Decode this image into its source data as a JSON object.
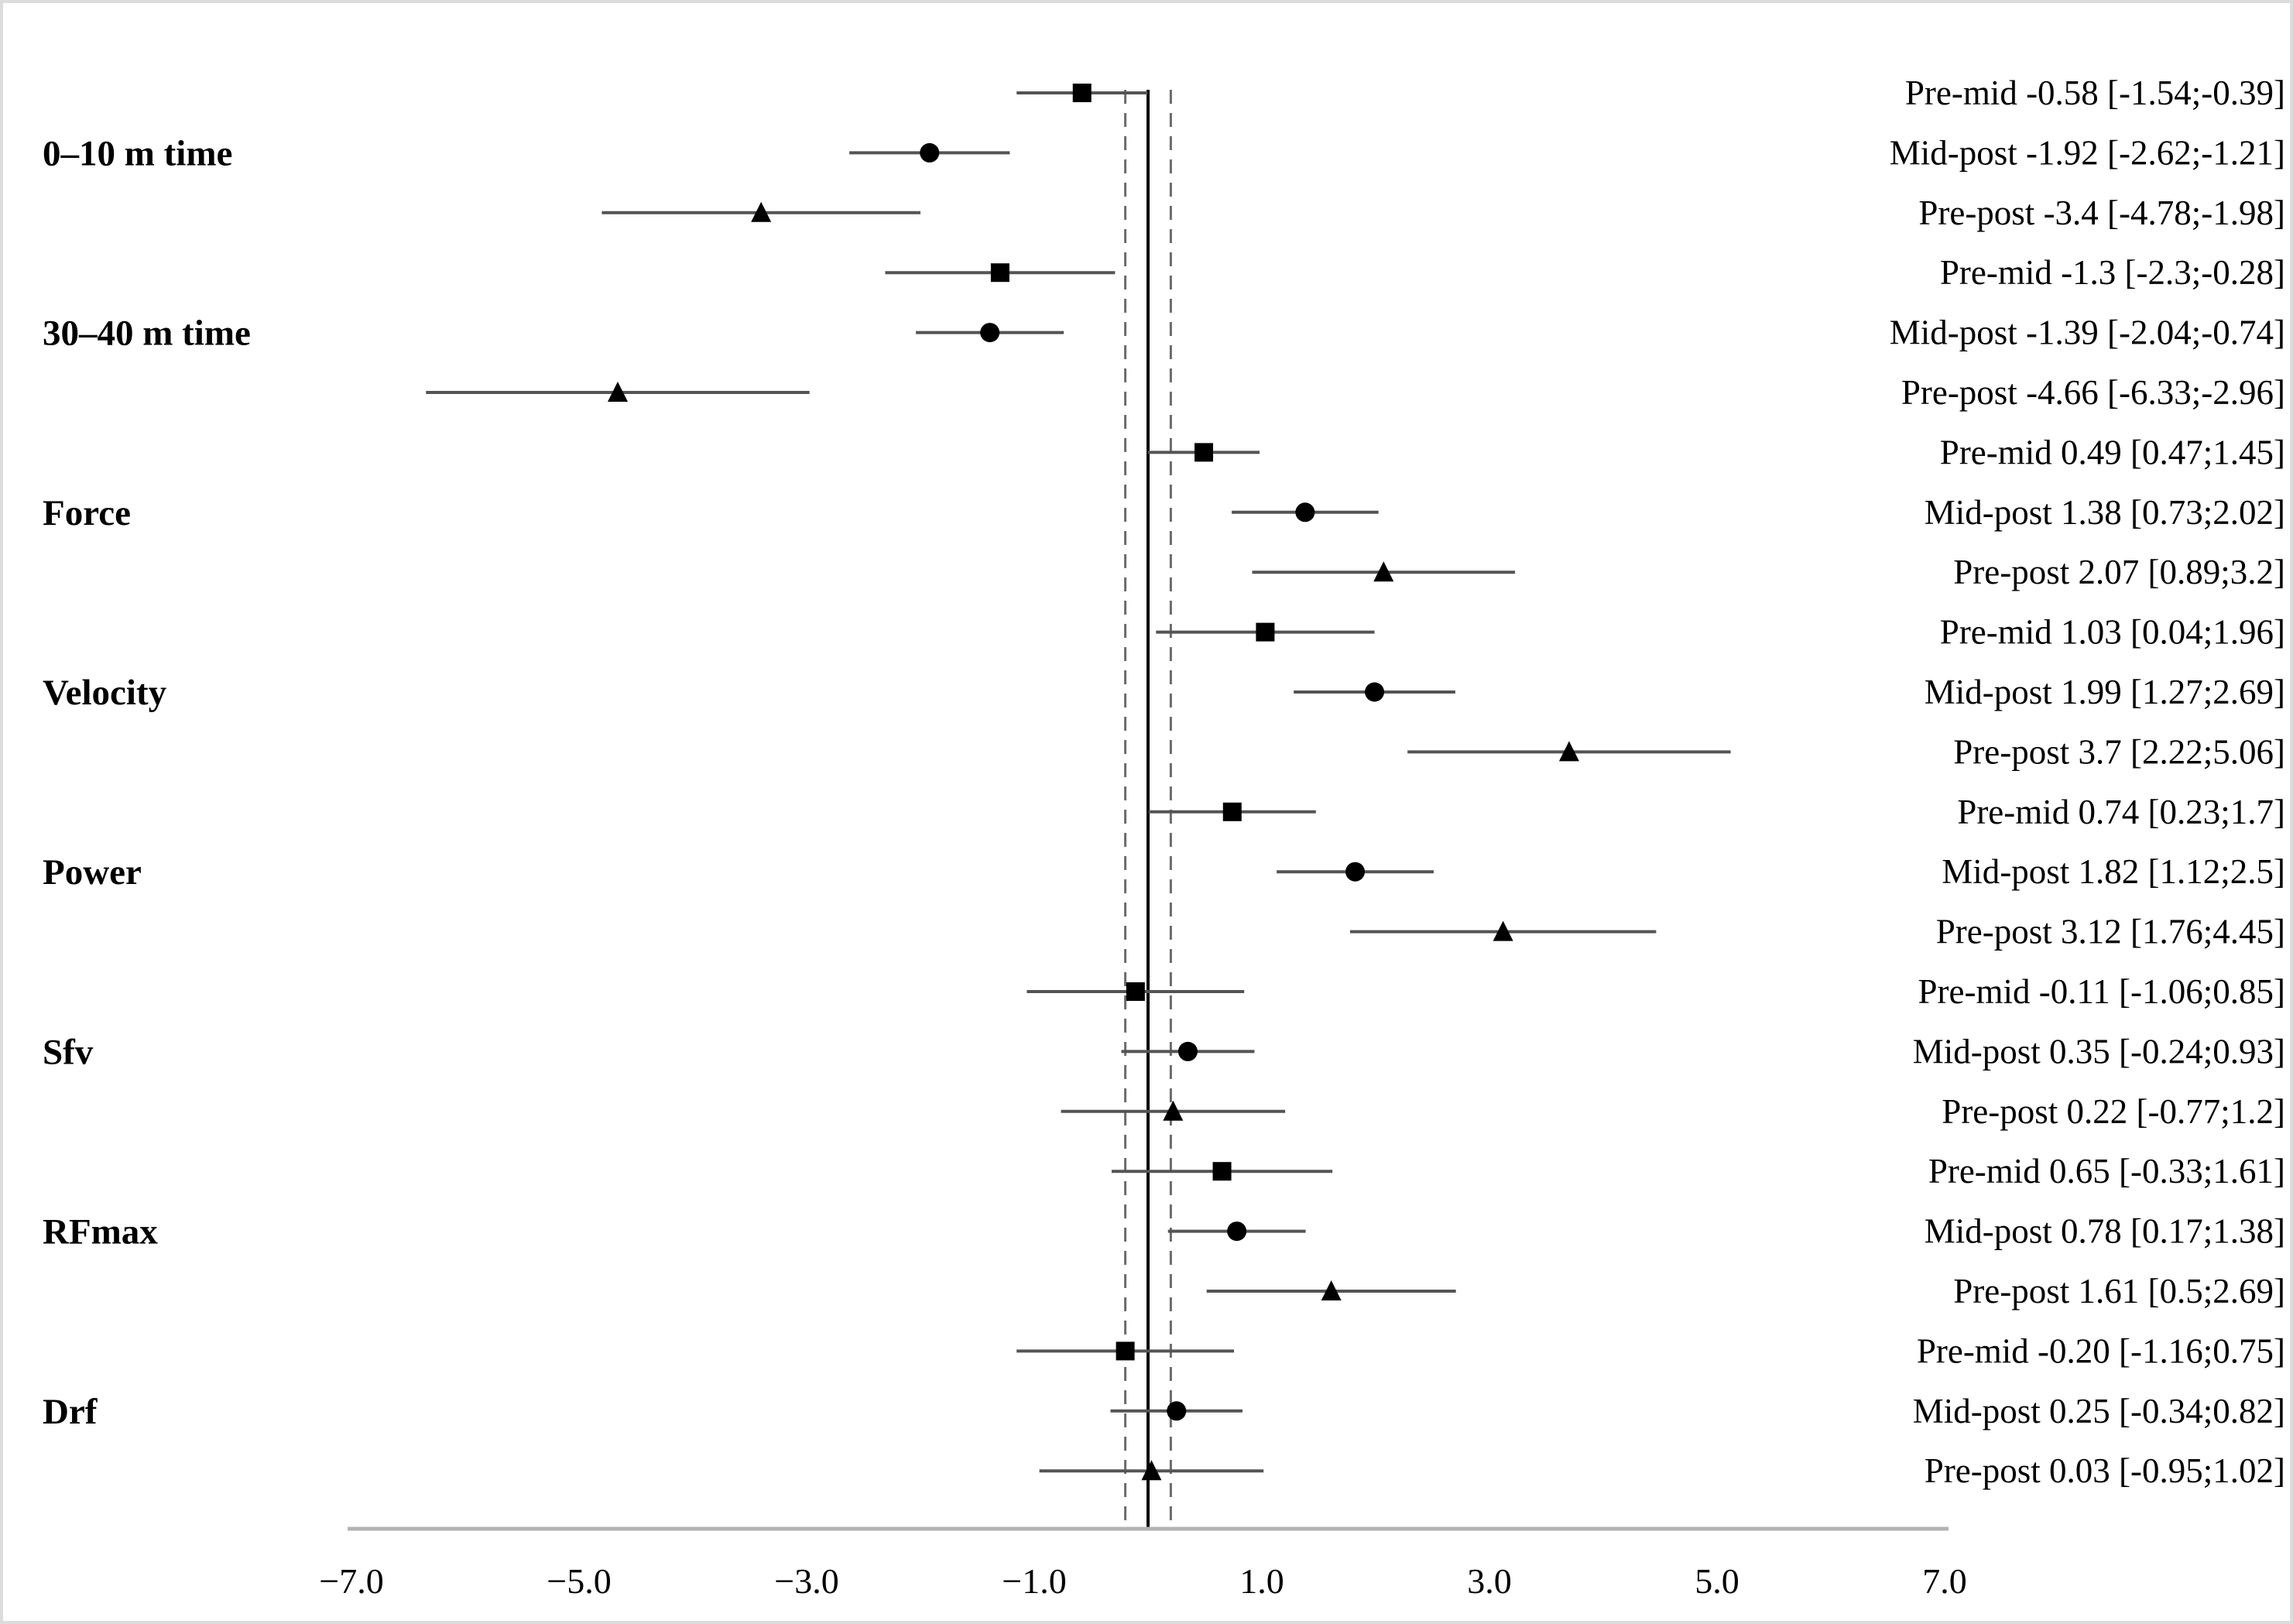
{
  "figure": {
    "kind": "forest plot of effect sizes with confidence intervals"
  },
  "chart_data": {
    "type": "forest",
    "title": "",
    "xlabel": "",
    "ylabel": "",
    "x_axis": {
      "range": [
        -7,
        7
      ],
      "ticks": [
        {
          "value": -7,
          "label": "−7.0"
        },
        {
          "value": -5,
          "label": "−5.0"
        },
        {
          "value": -3,
          "label": "−3.0"
        },
        {
          "value": -1,
          "label": "−1.0"
        },
        {
          "value": 1,
          "label": "1.0"
        },
        {
          "value": 3,
          "label": "3.0"
        },
        {
          "value": 5,
          "label": "5.0"
        },
        {
          "value": 7,
          "label": "7.0"
        }
      ]
    },
    "reference_lines": {
      "solid_zero_line": 0,
      "dashed_lines": [
        -0.2,
        0.2
      ]
    },
    "marker_shapes": {
      "Pre-mid": "square",
      "Mid-post": "circle",
      "Pre-post": "triangle"
    },
    "groups": [
      {
        "name": "0–10 m time",
        "rows": [
          {
            "comparison": "Pre-mid",
            "marker": "square",
            "estimate": -0.58,
            "ci_lower": -1.54,
            "ci_upper": -0.39,
            "label": "Pre-mid -0.58 [-1.54;-0.39]"
          },
          {
            "comparison": "Mid-post",
            "marker": "circle",
            "estimate": -1.92,
            "ci_lower": -2.62,
            "ci_upper": -1.21,
            "label": "Mid-post -1.92 [-2.62;-1.21]"
          },
          {
            "comparison": "Pre-post",
            "marker": "triangle",
            "estimate": -3.4,
            "ci_lower": -4.78,
            "ci_upper": -1.98,
            "label": "Pre-post -3.4 [-4.78;-1.98]"
          }
        ]
      },
      {
        "name": "30–40 m time",
        "rows": [
          {
            "comparison": "Pre-mid",
            "marker": "square",
            "estimate": -1.3,
            "ci_lower": -2.3,
            "ci_upper": -0.28,
            "label": "Pre-mid -1.3 [-2.3;-0.28]"
          },
          {
            "comparison": "Mid-post",
            "marker": "circle",
            "estimate": -1.39,
            "ci_lower": -2.04,
            "ci_upper": -0.74,
            "label": "Mid-post -1.39 [-2.04;-0.74]"
          },
          {
            "comparison": "Pre-post",
            "marker": "triangle",
            "estimate": -4.66,
            "ci_lower": -6.33,
            "ci_upper": -2.96,
            "label": "Pre-post -4.66 [-6.33;-2.96]"
          }
        ]
      },
      {
        "name": "Force",
        "rows": [
          {
            "comparison": "Pre-mid",
            "marker": "square",
            "estimate": 0.49,
            "ci_lower": 0.47,
            "ci_upper": 1.45,
            "label": "Pre-mid 0.49 [0.47;1.45]"
          },
          {
            "comparison": "Mid-post",
            "marker": "circle",
            "estimate": 1.38,
            "ci_lower": 0.73,
            "ci_upper": 2.02,
            "label": "Mid-post 1.38 [0.73;2.02]"
          },
          {
            "comparison": "Pre-post",
            "marker": "triangle",
            "estimate": 2.07,
            "ci_lower": 0.89,
            "ci_upper": 3.2,
            "label": "Pre-post 2.07 [0.89;3.2]"
          }
        ]
      },
      {
        "name": "Velocity",
        "rows": [
          {
            "comparison": "Pre-mid",
            "marker": "square",
            "estimate": 1.03,
            "ci_lower": 0.04,
            "ci_upper": 1.96,
            "label": "Pre-mid 1.03 [0.04;1.96]"
          },
          {
            "comparison": "Mid-post",
            "marker": "circle",
            "estimate": 1.99,
            "ci_lower": 1.27,
            "ci_upper": 2.69,
            "label": "Mid-post 1.99 [1.27;2.69]"
          },
          {
            "comparison": "Pre-post",
            "marker": "triangle",
            "estimate": 3.7,
            "ci_lower": 2.22,
            "ci_upper": 5.06,
            "label": "Pre-post 3.7 [2.22;5.06]"
          }
        ]
      },
      {
        "name": "Power",
        "rows": [
          {
            "comparison": "Pre-mid",
            "marker": "square",
            "estimate": 0.74,
            "ci_lower": 0.23,
            "ci_upper": 1.7,
            "label": "Pre-mid 0.74 [0.23;1.7]"
          },
          {
            "comparison": "Mid-post",
            "marker": "circle",
            "estimate": 1.82,
            "ci_lower": 1.12,
            "ci_upper": 2.5,
            "label": "Mid-post 1.82 [1.12;2.5]"
          },
          {
            "comparison": "Pre-post",
            "marker": "triangle",
            "estimate": 3.12,
            "ci_lower": 1.76,
            "ci_upper": 4.45,
            "label": "Pre-post 3.12 [1.76;4.45]"
          }
        ]
      },
      {
        "name": "Sfv",
        "rows": [
          {
            "comparison": "Pre-mid",
            "marker": "square",
            "estimate": -0.11,
            "ci_lower": -1.06,
            "ci_upper": 0.85,
            "label": "Pre-mid -0.11 [-1.06;0.85]"
          },
          {
            "comparison": "Mid-post",
            "marker": "circle",
            "estimate": 0.35,
            "ci_lower": -0.24,
            "ci_upper": 0.93,
            "label": "Mid-post 0.35 [-0.24;0.93]"
          },
          {
            "comparison": "Pre-post",
            "marker": "triangle",
            "estimate": 0.22,
            "ci_lower": -0.77,
            "ci_upper": 1.2,
            "label": "Pre-post 0.22 [-0.77;1.2]"
          }
        ]
      },
      {
        "name": "RFmax",
        "rows": [
          {
            "comparison": "Pre-mid",
            "marker": "square",
            "estimate": 0.65,
            "ci_lower": -0.33,
            "ci_upper": 1.61,
            "label": "Pre-mid 0.65 [-0.33;1.61]"
          },
          {
            "comparison": "Mid-post",
            "marker": "circle",
            "estimate": 0.78,
            "ci_lower": 0.17,
            "ci_upper": 1.38,
            "label": "Mid-post 0.78 [0.17;1.38]"
          },
          {
            "comparison": "Pre-post",
            "marker": "triangle",
            "estimate": 1.61,
            "ci_lower": 0.5,
            "ci_upper": 2.69,
            "label": "Pre-post 1.61 [0.5;2.69]"
          }
        ]
      },
      {
        "name": "Drf",
        "rows": [
          {
            "comparison": "Pre-mid",
            "marker": "square",
            "estimate": -0.2,
            "ci_lower": -1.16,
            "ci_upper": 0.75,
            "label": "Pre-mid -0.20 [-1.16;0.75]"
          },
          {
            "comparison": "Mid-post",
            "marker": "circle",
            "estimate": 0.25,
            "ci_lower": -0.34,
            "ci_upper": 0.82,
            "label": "Mid-post 0.25 [-0.34;0.82]"
          },
          {
            "comparison": "Pre-post",
            "marker": "triangle",
            "estimate": 0.03,
            "ci_lower": -0.95,
            "ci_upper": 1.02,
            "label": "Pre-post 0.03 [-0.95;1.02]"
          }
        ]
      }
    ]
  }
}
